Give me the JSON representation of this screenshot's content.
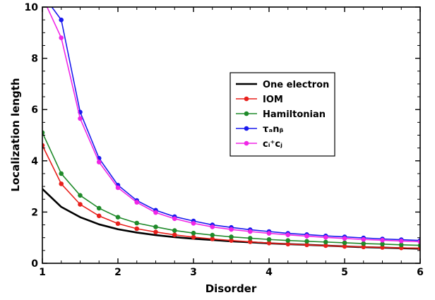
{
  "chart_data": {
    "type": "line",
    "title": "",
    "xlabel": "Disorder",
    "ylabel": "Localization length",
    "xlim": [
      1,
      6
    ],
    "ylim": [
      0,
      10
    ],
    "xticks": [
      1,
      2,
      3,
      4,
      5,
      6
    ],
    "yticks": [
      0,
      2,
      4,
      6,
      8,
      10
    ],
    "xtick_labels": [
      "1",
      "2",
      "3",
      "4",
      "5",
      "6"
    ],
    "ytick_labels": [
      "0",
      "2",
      "4",
      "6",
      "8",
      "10"
    ],
    "grid": false,
    "legend_position": "upper-right",
    "x": [
      1.0,
      1.25,
      1.5,
      1.75,
      2.0,
      2.25,
      2.5,
      2.75,
      3.0,
      3.25,
      3.5,
      3.75,
      4.0,
      4.25,
      4.5,
      4.75,
      5.0,
      5.25,
      5.5,
      5.75,
      6.0
    ],
    "series": [
      {
        "name": "One electron",
        "color": "#000000",
        "markers": false,
        "values": [
          2.9,
          2.2,
          1.8,
          1.52,
          1.33,
          1.2,
          1.1,
          1.02,
          0.96,
          0.91,
          0.86,
          0.82,
          0.78,
          0.75,
          0.72,
          0.69,
          0.66,
          0.63,
          0.61,
          0.59,
          0.57
        ]
      },
      {
        "name": "IOM",
        "color": "#e8201c",
        "markers": true,
        "values": [
          4.6,
          3.1,
          2.3,
          1.85,
          1.55,
          1.35,
          1.22,
          1.11,
          1.02,
          0.95,
          0.89,
          0.84,
          0.79,
          0.75,
          0.72,
          0.69,
          0.66,
          0.64,
          0.62,
          0.6,
          0.59
        ]
      },
      {
        "name": "Hamiltonian",
        "color": "#1f8a2a",
        "markers": true,
        "values": [
          5.1,
          3.5,
          2.65,
          2.15,
          1.8,
          1.57,
          1.42,
          1.28,
          1.18,
          1.1,
          1.03,
          0.98,
          0.93,
          0.89,
          0.86,
          0.83,
          0.8,
          0.77,
          0.75,
          0.72,
          0.7
        ]
      },
      {
        "name": "τₐnᵦ",
        "color": "#1a1aee",
        "markers": true,
        "values": [
          10.5,
          9.5,
          5.9,
          4.1,
          3.05,
          2.45,
          2.07,
          1.82,
          1.65,
          1.5,
          1.4,
          1.31,
          1.24,
          1.17,
          1.12,
          1.07,
          1.03,
          0.99,
          0.95,
          0.92,
          0.89
        ]
      },
      {
        "name": "cᵢ⁺cⱼ",
        "color": "#f026e6",
        "markers": true,
        "values": [
          10.4,
          8.8,
          5.65,
          3.95,
          2.95,
          2.38,
          1.98,
          1.74,
          1.56,
          1.42,
          1.32,
          1.24,
          1.17,
          1.11,
          1.06,
          1.01,
          0.97,
          0.93,
          0.9,
          0.87,
          0.84
        ]
      }
    ]
  }
}
